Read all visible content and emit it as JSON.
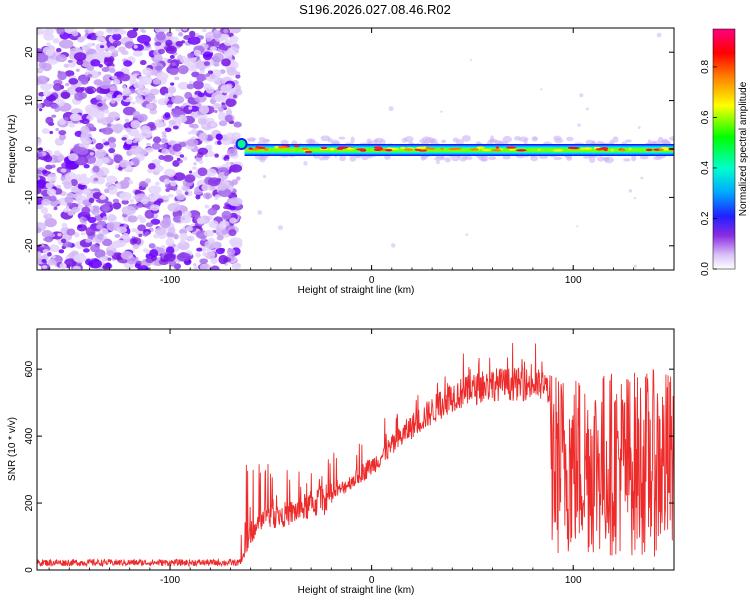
{
  "title": "S196.2026.027.08.46.R02",
  "chart_data": [
    {
      "type": "heatmap",
      "name": "spectrogram",
      "xlabel": "Height of straight line (km)",
      "ylabel": "Frequency (Hz)",
      "xlim": [
        -166,
        150
      ],
      "ylim": [
        -25,
        25
      ],
      "xticks": [
        -100,
        0,
        100
      ],
      "yticks": [
        -20,
        -10,
        0,
        10,
        20
      ],
      "noise_region_x": [
        -166,
        -66
      ],
      "signal_start_x": -66,
      "signal_frequency": 0,
      "colorbar": {
        "label": "Normalized spectral amplitude",
        "range": [
          0,
          0.95
        ],
        "ticks": [
          0.0,
          0.2,
          0.4,
          0.6,
          0.8
        ],
        "tick_labels": [
          "0.0",
          "0.2",
          "0.4",
          "0.6",
          "0.8"
        ],
        "colors": [
          "#ffffff",
          "#c8a8f5",
          "#6a00ff",
          "#0000ff",
          "#00ccff",
          "#00ff00",
          "#ffff00",
          "#ff8000",
          "#ff0000",
          "#ff007f"
        ]
      }
    },
    {
      "type": "line",
      "name": "snr",
      "xlabel": "Height of straight line (km)",
      "ylabel": "SNR (10 * v/v)",
      "xlim": [
        -166,
        150
      ],
      "ylim": [
        0,
        720
      ],
      "xticks": [
        -100,
        0,
        100
      ],
      "yticks": [
        0,
        200,
        400,
        600
      ],
      "color": "#ee2b2b",
      "envelope": [
        {
          "x": -166,
          "y": 22
        },
        {
          "x": -65,
          "y": 22
        },
        {
          "x": -56,
          "y": 150
        },
        {
          "x": -40,
          "y": 170
        },
        {
          "x": -20,
          "y": 220
        },
        {
          "x": 0,
          "y": 310
        },
        {
          "x": 20,
          "y": 430
        },
        {
          "x": 40,
          "y": 520
        },
        {
          "x": 60,
          "y": 555
        },
        {
          "x": 80,
          "y": 555
        },
        {
          "x": 88,
          "y": 545
        },
        {
          "x": 100,
          "y": 360
        },
        {
          "x": 150,
          "y": 320
        }
      ]
    }
  ]
}
